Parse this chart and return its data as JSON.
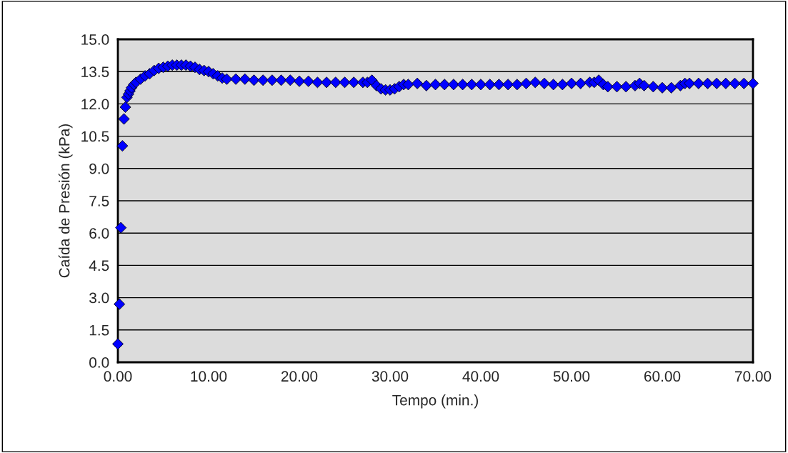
{
  "chart_data": {
    "type": "scatter",
    "xlabel": "Tempo (min.)",
    "ylabel": "Caída de Presión (kPa)",
    "xlim": [
      0,
      70
    ],
    "xticks": [
      {
        "value": 0,
        "label": "0.00"
      },
      {
        "value": 10,
        "label": "10.00"
      },
      {
        "value": 20,
        "label": "20.00"
      },
      {
        "value": 30,
        "label": "30.00"
      },
      {
        "value": 40,
        "label": "40.00"
      },
      {
        "value": 50,
        "label": "50.00"
      },
      {
        "value": 60,
        "label": "60.00"
      },
      {
        "value": 70,
        "label": "70.00"
      }
    ],
    "ylim": [
      0,
      15
    ],
    "yticks": [
      {
        "value": 0,
        "label": "0.0"
      },
      {
        "value": 1.5,
        "label": "1.5"
      },
      {
        "value": 3,
        "label": "3.0"
      },
      {
        "value": 4.5,
        "label": "4.5"
      },
      {
        "value": 6,
        "label": "6.0"
      },
      {
        "value": 7.5,
        "label": "7.5"
      },
      {
        "value": 9,
        "label": "9.0"
      },
      {
        "value": 10.5,
        "label": "10.5"
      },
      {
        "value": 12,
        "label": "12.0"
      },
      {
        "value": 13.5,
        "label": "13.5"
      },
      {
        "value": 15,
        "label": "15.0"
      }
    ],
    "grid": "y",
    "marker": "diamond",
    "legend": false,
    "series": [
      {
        "color": "#0000ff",
        "x": [
          0.0,
          0.17,
          0.33,
          0.5,
          0.67,
          0.83,
          1.0,
          1.17,
          1.33,
          1.5,
          1.75,
          2.0,
          2.5,
          3.0,
          3.5,
          4.0,
          4.5,
          5.0,
          5.5,
          6.0,
          6.5,
          7.0,
          7.5,
          8.0,
          8.5,
          9.0,
          9.5,
          10.0,
          10.5,
          11.0,
          11.5,
          12.0,
          13.0,
          14.0,
          15.0,
          16.0,
          17.0,
          18.0,
          19.0,
          20.0,
          21.0,
          22.0,
          23.0,
          24.0,
          25.0,
          26.0,
          27.0,
          27.5,
          28.0,
          28.5,
          29.0,
          29.5,
          30.0,
          30.5,
          31.0,
          31.5,
          32.0,
          33.0,
          34.0,
          35.0,
          36.0,
          37.0,
          38.0,
          39.0,
          40.0,
          41.0,
          42.0,
          43.0,
          44.0,
          45.0,
          46.0,
          47.0,
          48.0,
          49.0,
          50.0,
          51.0,
          52.0,
          52.5,
          53.0,
          53.5,
          54.0,
          55.0,
          56.0,
          57.0,
          57.5,
          58.0,
          59.0,
          60.0,
          61.0,
          62.0,
          62.5,
          63.0,
          64.0,
          65.0,
          66.0,
          67.0,
          68.0,
          69.0,
          70.0
        ],
        "values": [
          0.85,
          2.7,
          6.25,
          10.05,
          11.3,
          11.85,
          12.3,
          12.45,
          12.6,
          12.75,
          12.9,
          13.0,
          13.15,
          13.3,
          13.4,
          13.55,
          13.65,
          13.7,
          13.75,
          13.8,
          13.8,
          13.8,
          13.8,
          13.75,
          13.7,
          13.6,
          13.55,
          13.5,
          13.4,
          13.3,
          13.2,
          13.15,
          13.15,
          13.15,
          13.1,
          13.1,
          13.1,
          13.1,
          13.1,
          13.05,
          13.05,
          13.0,
          13.0,
          13.0,
          13.0,
          13.0,
          13.0,
          13.0,
          13.1,
          12.85,
          12.7,
          12.65,
          12.65,
          12.7,
          12.8,
          12.9,
          12.9,
          12.95,
          12.85,
          12.9,
          12.9,
          12.9,
          12.9,
          12.9,
          12.9,
          12.9,
          12.9,
          12.9,
          12.9,
          12.95,
          13.0,
          12.95,
          12.9,
          12.9,
          12.95,
          12.95,
          13.0,
          13.0,
          13.1,
          12.9,
          12.8,
          12.8,
          12.8,
          12.85,
          12.95,
          12.85,
          12.8,
          12.75,
          12.75,
          12.85,
          12.95,
          12.95,
          12.95,
          12.95,
          12.95,
          12.95,
          12.95,
          12.95,
          12.95
        ]
      }
    ]
  }
}
